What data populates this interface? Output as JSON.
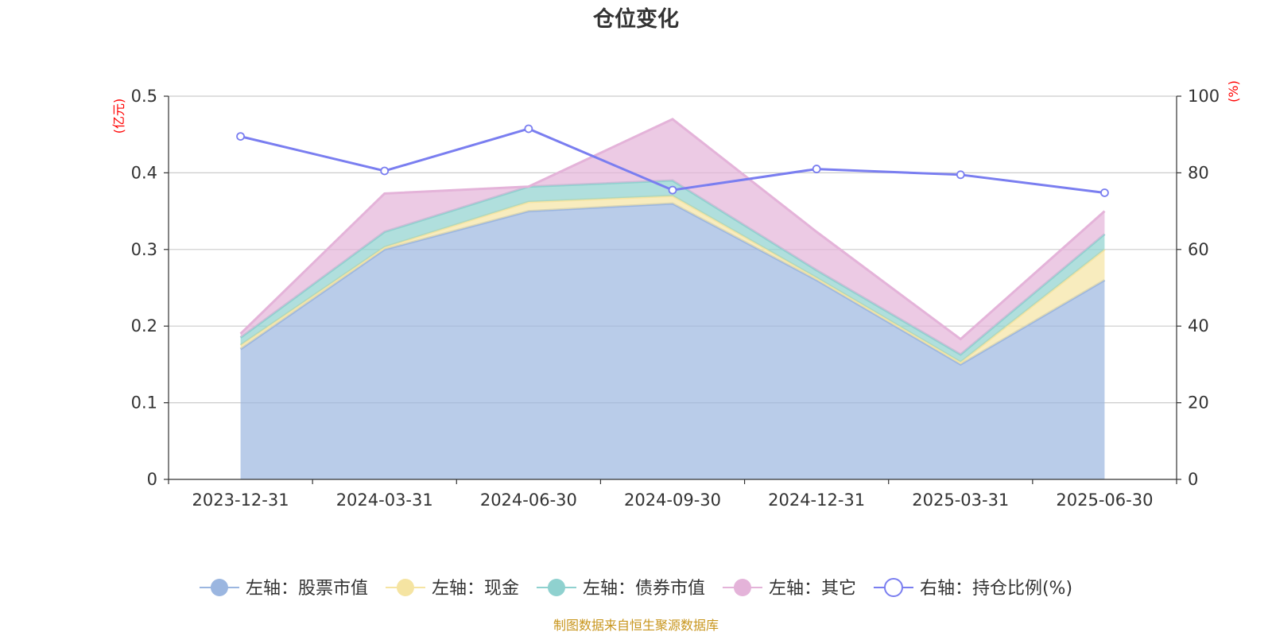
{
  "chart_data": {
    "type": "area",
    "title": "仓位变化",
    "categories": [
      "2023-12-31",
      "2024-03-31",
      "2024-06-30",
      "2024-09-30",
      "2024-12-31",
      "2025-03-31",
      "2025-06-30"
    ],
    "y_left": {
      "unit": "(亿元)",
      "range": [
        0,
        0.5
      ],
      "ticks": [
        "0",
        "0.1",
        "0.2",
        "0.3",
        "0.4",
        "0.5"
      ]
    },
    "y_right": {
      "unit": "(%)",
      "range": [
        0,
        100
      ],
      "ticks": [
        "0",
        "20",
        "40",
        "60",
        "80",
        "100"
      ]
    },
    "grid": true,
    "stacked": true,
    "series": [
      {
        "name": "左轴：股票市值",
        "axis": "left",
        "kind": "area",
        "color": "#9bb6e0",
        "values": [
          0.17,
          0.3,
          0.35,
          0.36,
          0.26,
          0.15,
          0.26
        ]
      },
      {
        "name": "左轴：现金",
        "axis": "left",
        "kind": "area",
        "color": "#f5e4a2",
        "values": [
          0.005,
          0.003,
          0.012,
          0.01,
          0.003,
          0.003,
          0.04
        ]
      },
      {
        "name": "左轴：债券市值",
        "axis": "left",
        "kind": "area",
        "color": "#8fd1cf",
        "values": [
          0.01,
          0.02,
          0.02,
          0.02,
          0.01,
          0.01,
          0.02
        ]
      },
      {
        "name": "左轴：其它",
        "axis": "left",
        "kind": "area",
        "color": "#e4b3d9",
        "values": [
          0.005,
          0.05,
          0.0,
          0.08,
          0.05,
          0.02,
          0.03
        ]
      },
      {
        "name": "右轴：持仓比例(%)",
        "axis": "right",
        "kind": "line",
        "color": "#7a7ef0",
        "values": [
          89.5,
          80.5,
          91.5,
          75.5,
          81.0,
          79.5,
          74.8
        ]
      }
    ],
    "legend_position": "bottom",
    "source_note": "制图数据来自恒生聚源数据库"
  }
}
